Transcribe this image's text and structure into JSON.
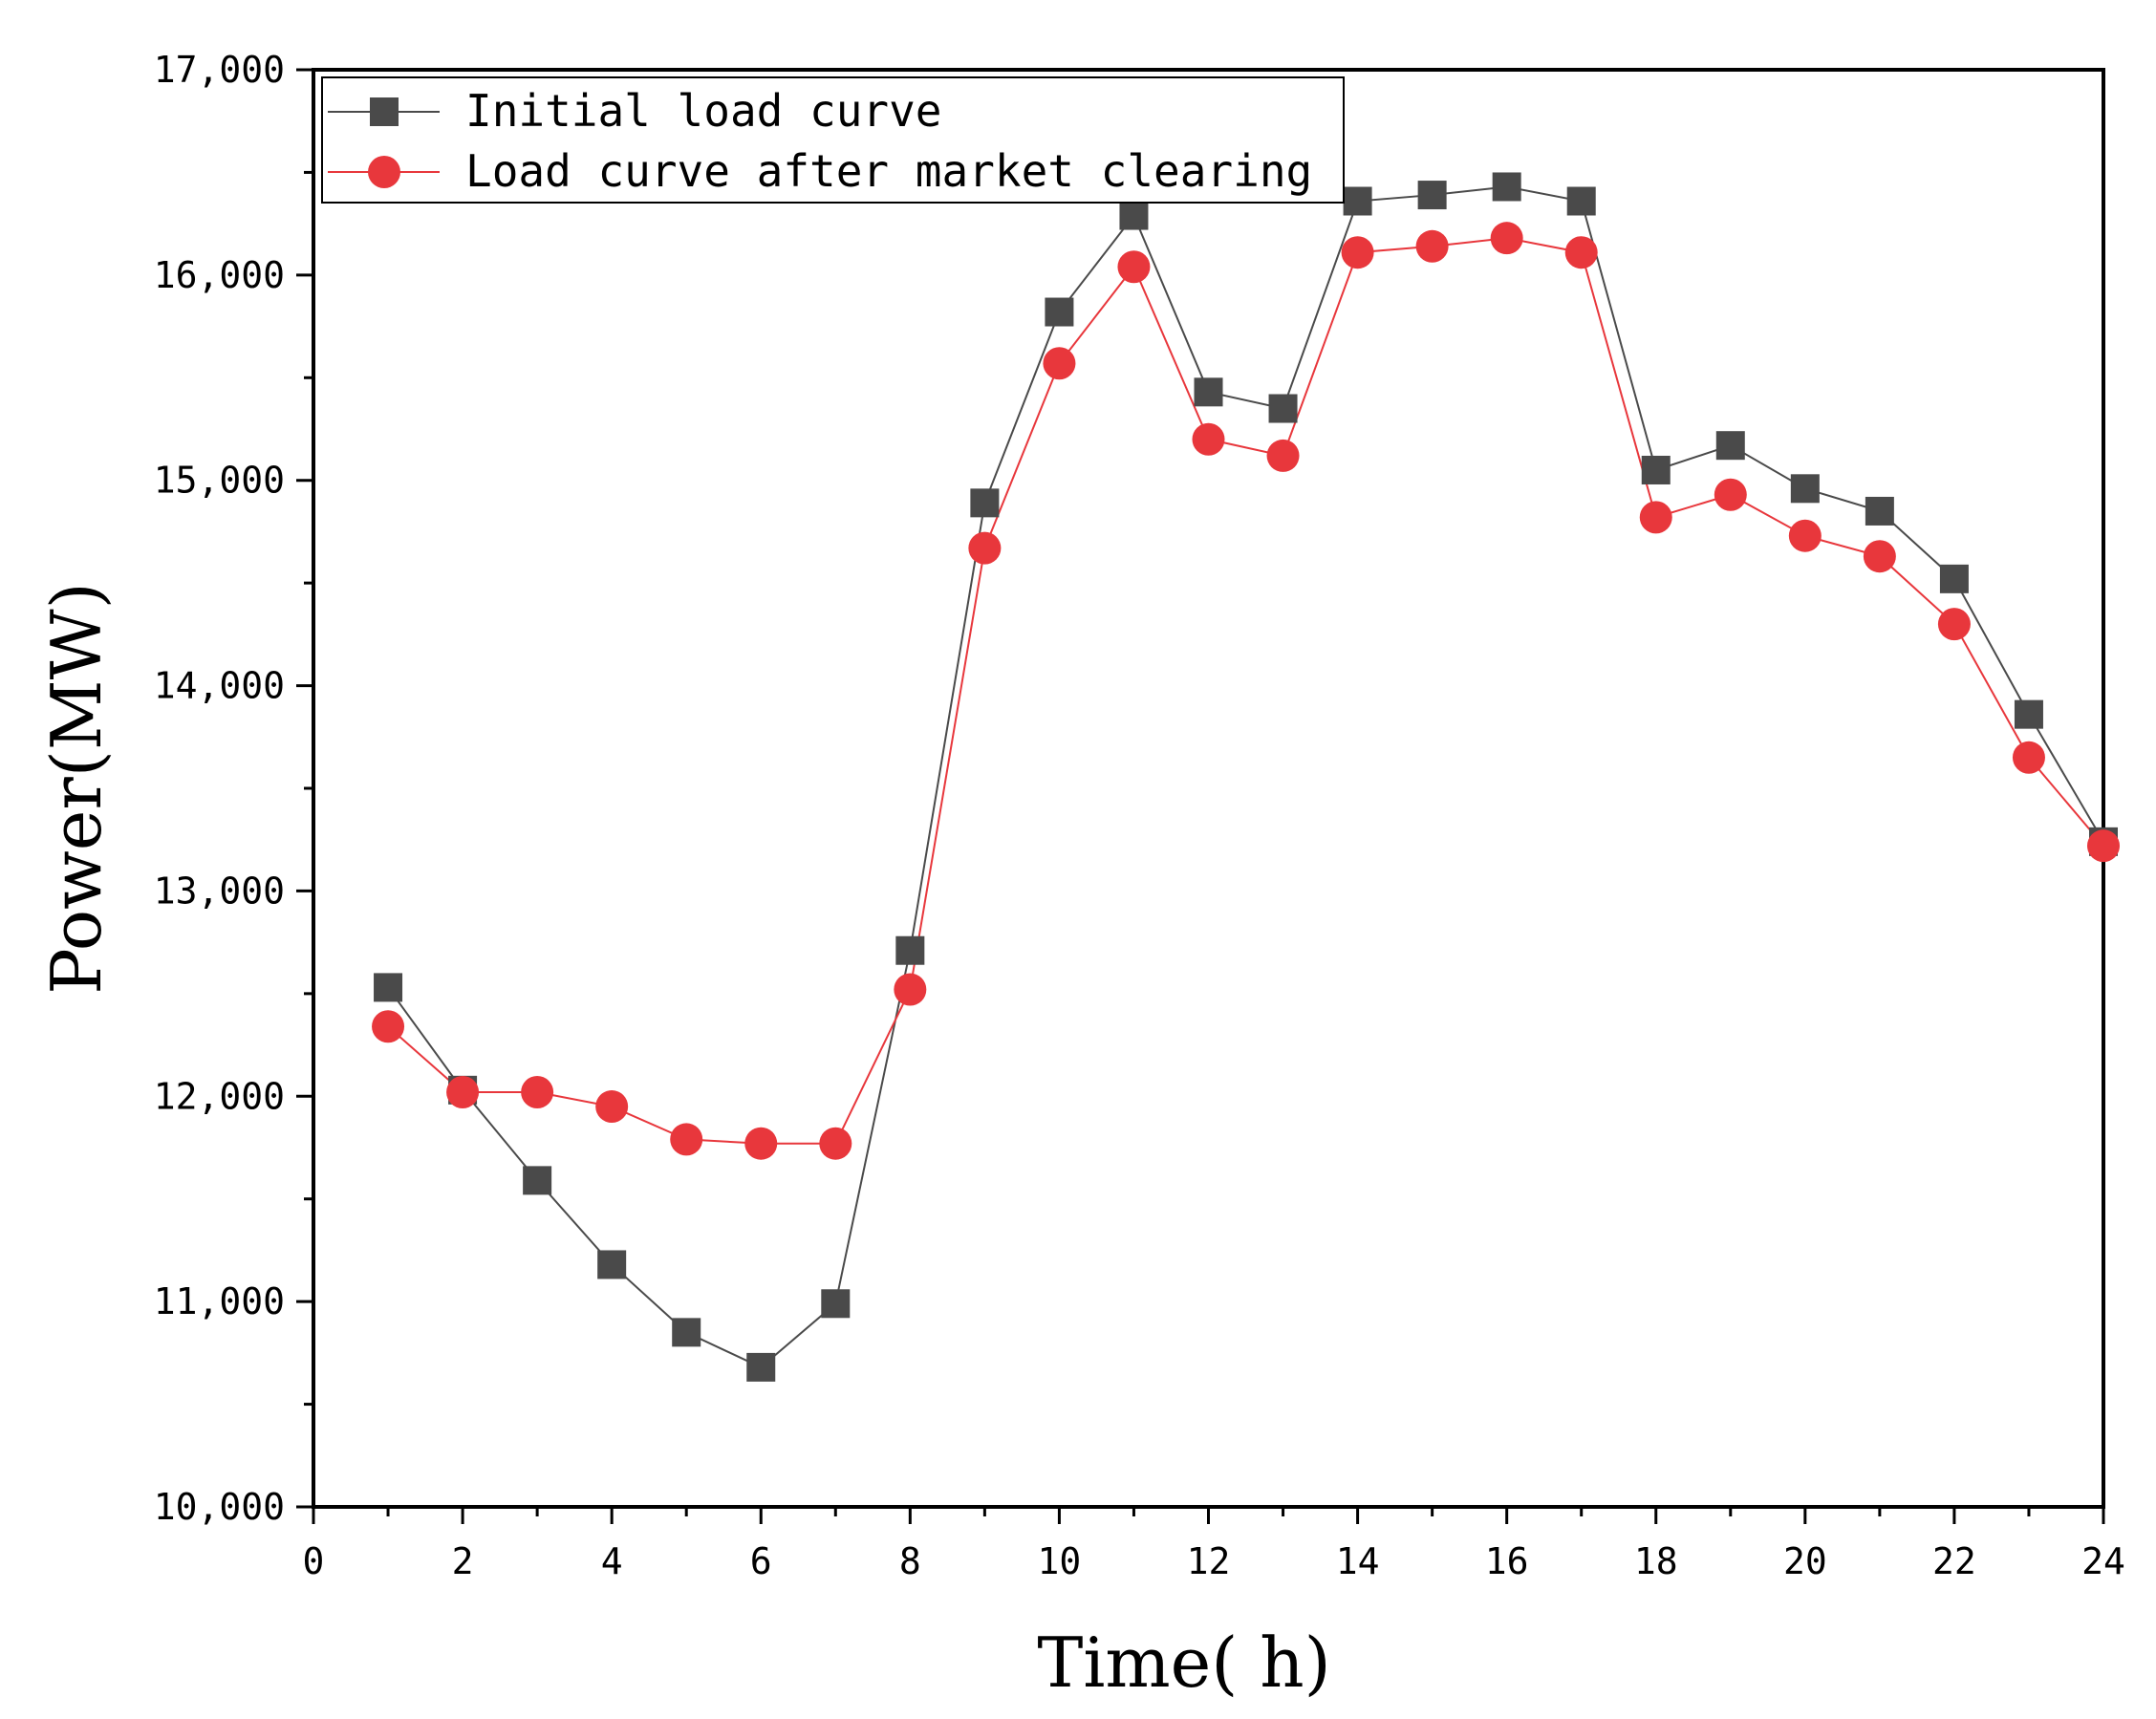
{
  "chart_data": {
    "type": "line",
    "title": "",
    "xlabel": "Time( h)",
    "ylabel": "Power(MW)",
    "xlim": [
      0,
      24
    ],
    "ylim": [
      10000,
      17000
    ],
    "x_ticks": [
      0,
      2,
      4,
      6,
      8,
      10,
      12,
      14,
      16,
      18,
      20,
      22,
      24
    ],
    "x_tick_labels": [
      "0",
      "2",
      "4",
      "6",
      "8",
      "10",
      "12",
      "14",
      "16",
      "18",
      "20",
      "22",
      "24"
    ],
    "y_ticks": [
      10000,
      11000,
      12000,
      13000,
      14000,
      15000,
      16000,
      17000
    ],
    "y_tick_labels": [
      "10,000",
      "11,000",
      "12,000",
      "13,000",
      "14,000",
      "15,000",
      "16,000",
      "17,000"
    ],
    "grid": false,
    "legend_position": "top-left",
    "x": [
      1,
      2,
      3,
      4,
      5,
      6,
      7,
      8,
      9,
      10,
      11,
      12,
      13,
      14,
      15,
      16,
      17,
      18,
      19,
      20,
      21,
      22,
      23,
      24
    ],
    "series": [
      {
        "name": "Initial load curve",
        "color": "#4a4a4a",
        "marker": "square",
        "values": [
          12530,
          12030,
          11590,
          11180,
          10850,
          10680,
          10990,
          12710,
          14890,
          15820,
          16290,
          15430,
          15350,
          16360,
          16390,
          16430,
          16360,
          15050,
          15170,
          14960,
          14850,
          14520,
          13860,
          13240
        ]
      },
      {
        "name": "Load curve after market clearing",
        "color": "#e8373c",
        "marker": "circle",
        "values": [
          12340,
          12020,
          12020,
          11950,
          11790,
          11770,
          11770,
          12520,
          14670,
          15570,
          16040,
          15200,
          15120,
          16110,
          16140,
          16180,
          16110,
          14820,
          14930,
          14730,
          14630,
          14300,
          13650,
          13220
        ]
      }
    ]
  }
}
